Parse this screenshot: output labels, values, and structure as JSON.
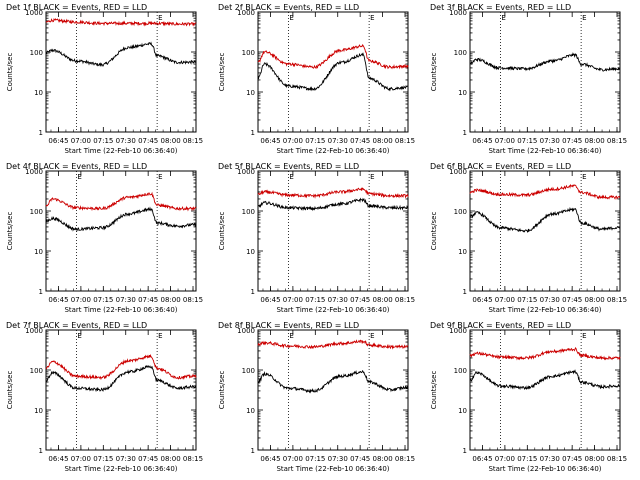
{
  "chart_data": [
    {
      "type": "line",
      "title": "Det 1f BLACK = Events, RED = LLD",
      "xlabel": "Start Time (22-Feb-10 06:36:40)",
      "ylabel": "Counts/sec",
      "yscale": "log",
      "ylim": [
        1,
        1000
      ],
      "x_ticks": [
        "06:45",
        "07:00",
        "07:15",
        "07:30",
        "07:45",
        "08:00",
        "08:15"
      ],
      "y_ticks": [
        "1",
        "10",
        "100",
        "1000"
      ],
      "x_time": [
        "06:36:40",
        "06:41",
        "06:57",
        "07:14",
        "07:32",
        "07:47",
        "07:51",
        "08:05",
        "08:15"
      ],
      "markers": [
        "06:57",
        "07:51"
      ],
      "marker_labels": [
        "",
        "E"
      ],
      "series": [
        {
          "color": "#000000",
          "values": [
            95,
            110,
            60,
            48,
            130,
            160,
            80,
            55,
            56
          ]
        },
        {
          "color": "#cc0000",
          "values": [
            560,
            620,
            560,
            520,
            520,
            520,
            520,
            500,
            500
          ]
        }
      ]
    },
    {
      "type": "line",
      "title": "Det 2f BLACK = Events, RED = LLD",
      "xlabel": "Start Time (22-Feb-10 06:36:40)",
      "ylabel": "Counts/sec",
      "yscale": "log",
      "ylim": [
        1,
        1000
      ],
      "x_ticks": [
        "06:45",
        "07:00",
        "07:15",
        "07:30",
        "07:45",
        "08:00",
        "08:15"
      ],
      "y_ticks": [
        "1",
        "10",
        "100",
        "1000"
      ],
      "x_time": [
        "06:36:40",
        "06:41",
        "06:57",
        "07:14",
        "07:32",
        "07:47",
        "07:51",
        "08:05",
        "08:15"
      ],
      "markers": [
        "06:57",
        "07:51"
      ],
      "marker_labels": [
        "E",
        "E"
      ],
      "series": [
        {
          "color": "#000000",
          "values": [
            22,
            50,
            14,
            12,
            55,
            85,
            22,
            12,
            13
          ]
        },
        {
          "color": "#cc0000",
          "values": [
            55,
            100,
            50,
            42,
            110,
            140,
            60,
            42,
            44
          ]
        }
      ]
    },
    {
      "type": "line",
      "title": "Det 3f BLACK = Events, RED = LLD",
      "xlabel": "Start Time (22-Feb-10 06:36:40)",
      "ylabel": "Counts/sec",
      "yscale": "log",
      "ylim": [
        1,
        1000
      ],
      "x_ticks": [
        "06:45",
        "07:00",
        "07:15",
        "07:30",
        "07:45",
        "08:00",
        "08:15"
      ],
      "y_ticks": [
        "1",
        "10",
        "100",
        "1000"
      ],
      "x_time": [
        "06:36:40",
        "06:41",
        "06:57",
        "07:14",
        "07:32",
        "07:47",
        "07:51",
        "08:05",
        "08:15"
      ],
      "markers": [
        "06:57",
        "07:51"
      ],
      "marker_labels": [
        "E",
        "E"
      ],
      "series": [
        {
          "color": "#000000",
          "values": [
            50,
            65,
            40,
            38,
            60,
            85,
            50,
            36,
            38
          ]
        }
      ]
    },
    {
      "type": "line",
      "title": "Det 4f BLACK = Events, RED = LLD",
      "xlabel": "Start Time (22-Feb-10 06:36:40)",
      "ylabel": "Counts/sec",
      "yscale": "log",
      "ylim": [
        1,
        1000
      ],
      "x_ticks": [
        "06:45",
        "07:00",
        "07:15",
        "07:30",
        "07:45",
        "08:00",
        "08:15"
      ],
      "y_ticks": [
        "1",
        "10",
        "100",
        "1000"
      ],
      "x_time": [
        "06:36:40",
        "06:41",
        "06:57",
        "07:14",
        "07:32",
        "07:47",
        "07:51",
        "08:05",
        "08:15"
      ],
      "markers": [
        "06:57",
        "07:51"
      ],
      "marker_labels": [
        "E",
        "E"
      ],
      "series": [
        {
          "color": "#000000",
          "values": [
            55,
            65,
            35,
            38,
            85,
            110,
            50,
            42,
            45
          ]
        },
        {
          "color": "#cc0000",
          "values": [
            130,
            200,
            120,
            115,
            220,
            270,
            140,
            115,
            115
          ]
        }
      ]
    },
    {
      "type": "line",
      "title": "Det 5f BLACK = Events, RED = LLD",
      "xlabel": "Start Time (22-Feb-10 06:36:40)",
      "ylabel": "Counts/sec",
      "yscale": "log",
      "ylim": [
        1,
        1000
      ],
      "x_ticks": [
        "06:45",
        "07:00",
        "07:15",
        "07:30",
        "07:45",
        "08:00",
        "08:15"
      ],
      "y_ticks": [
        "1",
        "10",
        "100",
        "1000"
      ],
      "x_time": [
        "06:36:40",
        "06:41",
        "06:57",
        "07:14",
        "07:32",
        "07:47",
        "07:51",
        "08:05",
        "08:15"
      ],
      "markers": [
        "06:57",
        "07:51"
      ],
      "marker_labels": [
        "E",
        "E"
      ],
      "series": [
        {
          "color": "#000000",
          "values": [
            130,
            160,
            120,
            115,
            150,
            190,
            135,
            120,
            120
          ]
        },
        {
          "color": "#cc0000",
          "values": [
            260,
            300,
            250,
            240,
            300,
            350,
            270,
            240,
            240
          ]
        }
      ]
    },
    {
      "type": "line",
      "title": "Det 6f BLACK = Events, RED = LLD",
      "xlabel": "Start Time (22-Feb-10 06:36:40)",
      "ylabel": "Counts/sec",
      "yscale": "log",
      "ylim": [
        1,
        1000
      ],
      "x_ticks": [
        "06:45",
        "07:00",
        "07:15",
        "07:30",
        "07:45",
        "08:00",
        "08:15"
      ],
      "y_ticks": [
        "1",
        "10",
        "100",
        "1000"
      ],
      "x_time": [
        "06:36:40",
        "06:41",
        "06:57",
        "07:14",
        "07:32",
        "07:47",
        "07:51",
        "08:05",
        "08:15"
      ],
      "markers": [
        "06:57",
        "07:51"
      ],
      "marker_labels": [
        "",
        "E"
      ],
      "series": [
        {
          "color": "#000000",
          "values": [
            70,
            90,
            38,
            32,
            85,
            110,
            50,
            35,
            38
          ]
        },
        {
          "color": "#cc0000",
          "values": [
            290,
            330,
            260,
            250,
            350,
            420,
            290,
            220,
            220
          ]
        }
      ]
    },
    {
      "type": "line",
      "title": "Det 7f BLACK = Events, RED = LLD",
      "xlabel": "Start Time (22-Feb-10 06:36:40)",
      "ylabel": "Counts/sec",
      "yscale": "log",
      "ylim": [
        1,
        1000
      ],
      "x_ticks": [
        "06:45",
        "07:00",
        "07:15",
        "07:30",
        "07:45",
        "08:00",
        "08:15"
      ],
      "y_ticks": [
        "1",
        "10",
        "100",
        "1000"
      ],
      "x_time": [
        "06:36:40",
        "06:41",
        "06:57",
        "07:14",
        "07:32",
        "07:47",
        "07:51",
        "08:05",
        "08:15"
      ],
      "markers": [
        "06:57",
        "07:51"
      ],
      "marker_labels": [
        "E",
        "E"
      ],
      "series": [
        {
          "color": "#000000",
          "values": [
            55,
            85,
            35,
            32,
            90,
            120,
            55,
            35,
            38
          ]
        },
        {
          "color": "#cc0000",
          "values": [
            110,
            160,
            70,
            65,
            170,
            220,
            110,
            65,
            70
          ]
        }
      ]
    },
    {
      "type": "line",
      "title": "Det 8f BLACK = Events, RED = LLD",
      "xlabel": "Start Time (22-Feb-10 06:36:40)",
      "ylabel": "Counts/sec",
      "yscale": "log",
      "ylim": [
        1,
        1000
      ],
      "x_ticks": [
        "06:45",
        "07:00",
        "07:15",
        "07:30",
        "07:45",
        "08:00",
        "08:15"
      ],
      "y_ticks": [
        "1",
        "10",
        "100",
        "1000"
      ],
      "x_time": [
        "06:36:40",
        "06:41",
        "06:57",
        "07:14",
        "07:32",
        "07:47",
        "07:51",
        "08:05",
        "08:15"
      ],
      "markers": [
        "06:57",
        "07:51"
      ],
      "marker_labels": [
        "E",
        "E"
      ],
      "series": [
        {
          "color": "#000000",
          "values": [
            50,
            80,
            35,
            30,
            70,
            90,
            50,
            32,
            36
          ]
        },
        {
          "color": "#cc0000",
          "values": [
            440,
            480,
            400,
            380,
            460,
            520,
            420,
            380,
            380
          ]
        }
      ]
    },
    {
      "type": "line",
      "title": "Det 9f BLACK = Events, RED = LLD",
      "xlabel": "Start Time (22-Feb-10 06:36:40)",
      "ylabel": "Counts/sec",
      "yscale": "log",
      "ylim": [
        1,
        1000
      ],
      "x_ticks": [
        "06:45",
        "07:00",
        "07:15",
        "07:30",
        "07:45",
        "08:00",
        "08:15"
      ],
      "y_ticks": [
        "1",
        "10",
        "100",
        "1000"
      ],
      "x_time": [
        "06:36:40",
        "06:41",
        "06:57",
        "07:14",
        "07:32",
        "07:47",
        "07:51",
        "08:05",
        "08:15"
      ],
      "markers": [
        "06:57",
        "07:51"
      ],
      "marker_labels": [
        "",
        "E"
      ],
      "series": [
        {
          "color": "#000000",
          "values": [
            55,
            85,
            40,
            36,
            70,
            90,
            50,
            38,
            40
          ]
        },
        {
          "color": "#cc0000",
          "values": [
            230,
            260,
            210,
            200,
            290,
            330,
            230,
            200,
            200
          ]
        }
      ]
    }
  ]
}
